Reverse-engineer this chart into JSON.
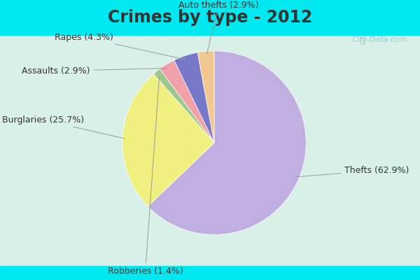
{
  "title": "Crimes by type - 2012",
  "slices": [
    {
      "label": "Thefts (62.9%)",
      "value": 62.9,
      "color": "#c0aee0"
    },
    {
      "label": "Burglaries (25.7%)",
      "value": 25.7,
      "color": "#f0f080"
    },
    {
      "label": "Robberies (1.4%)",
      "value": 1.4,
      "color": "#9dc88c"
    },
    {
      "label": "Assaults (2.9%)",
      "value": 2.9,
      "color": "#f0a0a8"
    },
    {
      "label": "Rapes (4.3%)",
      "value": 4.3,
      "color": "#7878c8"
    },
    {
      "label": "Auto thefts (2.9%)",
      "value": 2.9,
      "color": "#f0c890"
    }
  ],
  "bg_top": "#00e8f0",
  "bg_inner_top": "#d8f0e8",
  "bg_inner_bottom": "#c8e8d8",
  "title_fontsize": 17,
  "label_fontsize": 9,
  "title_color": "#333333",
  "label_color": "#333333",
  "watermark": "City-Data.com",
  "watermark_color": "#a0c8d0"
}
